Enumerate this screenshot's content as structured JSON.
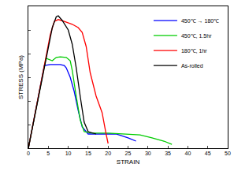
{
  "chart_data": {
    "type": "line",
    "x_label": "STRAIN",
    "y_label": "STRESS (MPa)",
    "xlim": [
      0,
      50
    ],
    "xticks": [
      0,
      5,
      10,
      15,
      20,
      25,
      30,
      35,
      40,
      45,
      50
    ],
    "ylim": [
      0,
      300
    ],
    "yticks": [
      0,
      50,
      100,
      150,
      200,
      250,
      300
    ],
    "tick_labels": "x",
    "grid": false,
    "legend": "top right",
    "series": [
      {
        "name": "450℃ → 180℃",
        "color": "#0000ff",
        "x": [
          0,
          4,
          5.5,
          8,
          9,
          9.5,
          10.5,
          11.5,
          12.5,
          13.5,
          15,
          18,
          22,
          25,
          27
        ],
        "values": [
          0,
          175,
          177,
          177,
          175,
          170,
          150,
          120,
          80,
          45,
          30,
          30,
          30,
          22,
          15
        ]
      },
      {
        "name": "450℃, 1.5hr",
        "color": "#00cc00",
        "x": [
          0,
          4.4,
          6,
          7,
          8,
          9.5,
          10.5,
          11,
          12,
          13,
          14,
          16,
          20,
          25,
          28,
          31,
          34,
          36
        ],
        "values": [
          0,
          190,
          185,
          192,
          193,
          192,
          185,
          165,
          110,
          60,
          35,
          32,
          32,
          30,
          28,
          22,
          15,
          8
        ]
      },
      {
        "name": "180℃, 1hr",
        "color": "#ff0000",
        "x": [
          0,
          5.5,
          6.5,
          7.5,
          9,
          11,
          12.5,
          13.5,
          14.5,
          15.5,
          17,
          18.5,
          19.5,
          20
        ],
        "values": [
          0,
          240,
          268,
          272,
          268,
          262,
          255,
          245,
          215,
          160,
          110,
          75,
          30,
          10
        ]
      },
      {
        "name": "As-rolled",
        "color": "#000000",
        "x": [
          0,
          6,
          7,
          7.5,
          8.5,
          10,
          11,
          12,
          13,
          14,
          15,
          17
        ],
        "values": [
          0,
          255,
          278,
          280,
          270,
          250,
          220,
          170,
          110,
          55,
          35,
          30
        ]
      }
    ]
  }
}
